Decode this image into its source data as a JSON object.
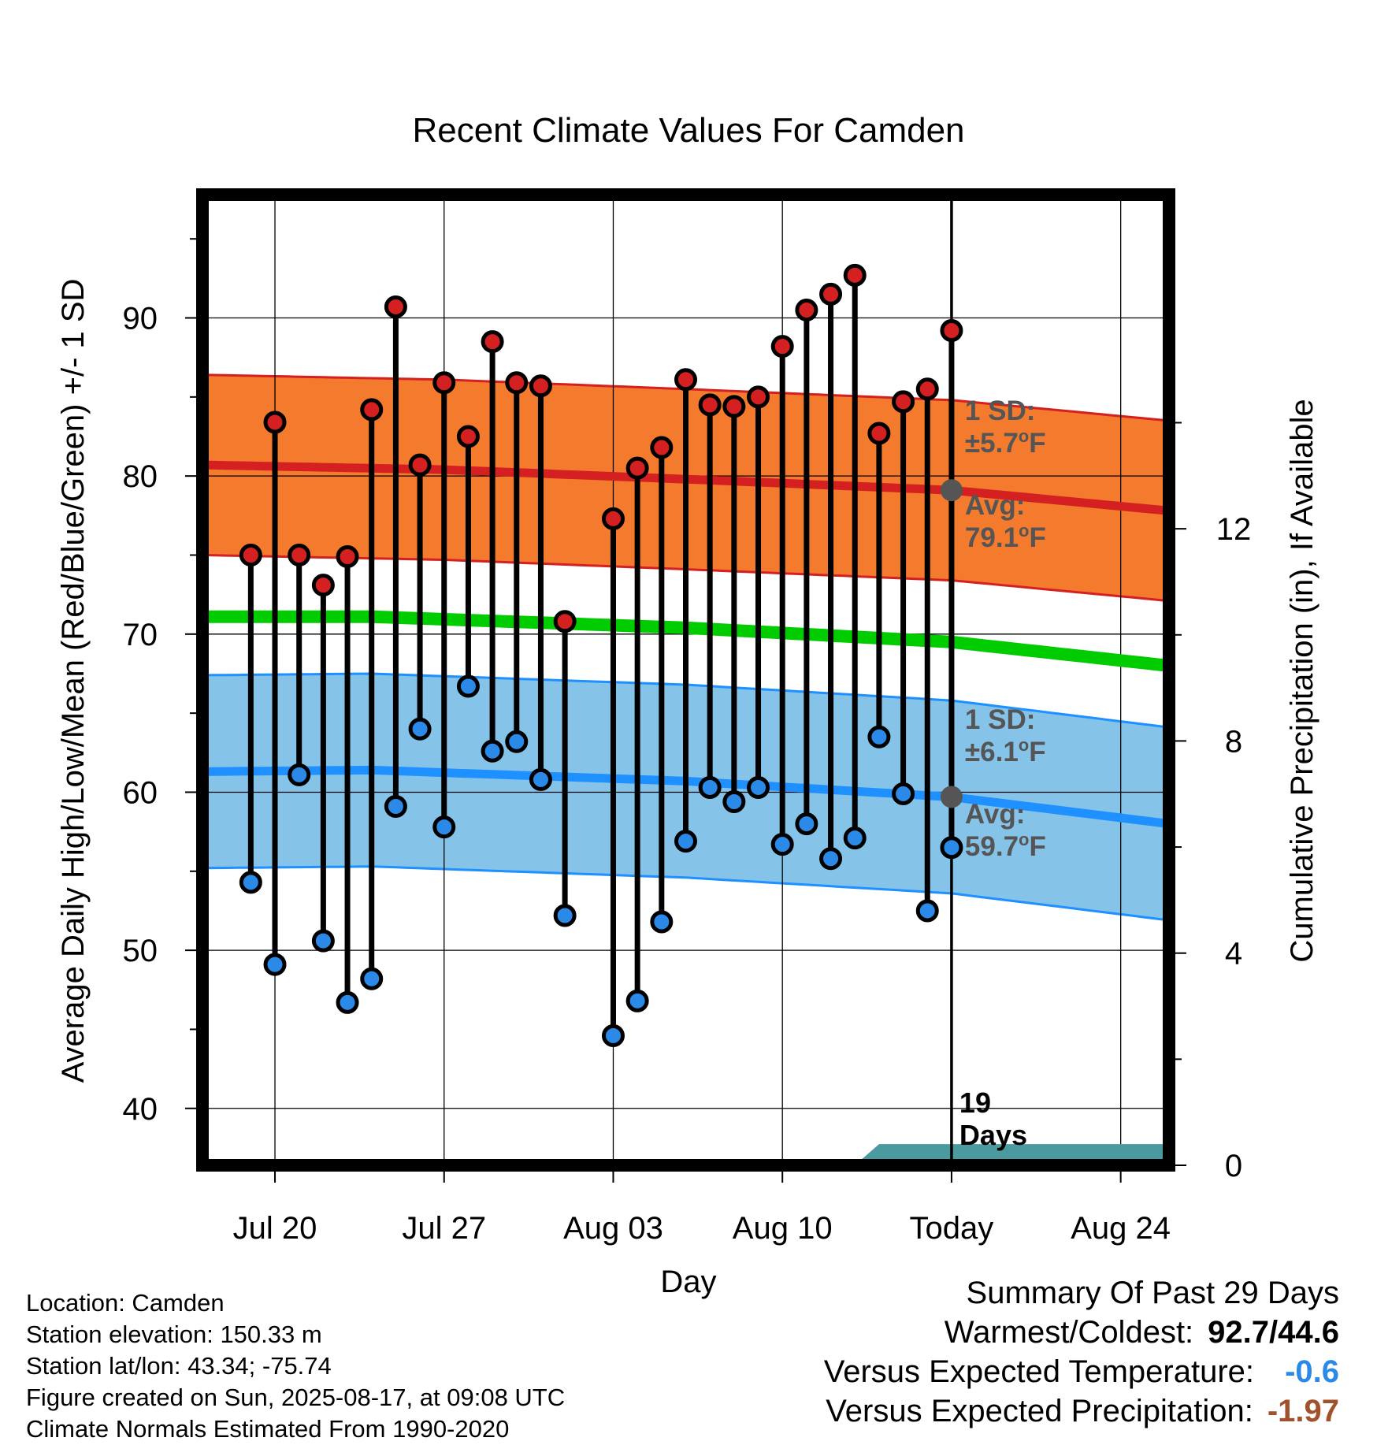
{
  "chart_data": {
    "type": "line",
    "title": "Recent Climate Values For Camden",
    "xlabel": "Day",
    "ylabel": "Average Daily High/Low/Mean (Red/Blue/Green) +/- 1 SD",
    "ylabel_right": "Cumulative Precipitation (in), If Available",
    "ylim": [
      36.4,
      97.8
    ],
    "y_ticks": [
      40,
      50,
      60,
      70,
      80,
      90
    ],
    "y2lim": [
      0,
      18.3
    ],
    "y2_ticks": [
      0,
      4,
      8,
      12
    ],
    "xlim": [
      "2025-07-17",
      "2025-08-26"
    ],
    "x_tick_dates": [
      "2025-07-20",
      "2025-07-27",
      "2025-08-03",
      "2025-08-10",
      "2025-08-17",
      "2025-08-24"
    ],
    "x_tick_labels": [
      "Jul 20",
      "Jul 27",
      "Aug 03",
      "Aug 10",
      "Today",
      "Aug 24"
    ],
    "grid": true,
    "today": "2025-08-17",
    "series": [
      {
        "name": "Observed High",
        "color": "#d42020",
        "points": [
          [
            "2025-07-19",
            75.0
          ],
          [
            "2025-07-20",
            83.4
          ],
          [
            "2025-07-21",
            75.0
          ],
          [
            "2025-07-22",
            73.1
          ],
          [
            "2025-07-23",
            74.9
          ],
          [
            "2025-07-24",
            84.2
          ],
          [
            "2025-07-25",
            90.7
          ],
          [
            "2025-07-26",
            80.7
          ],
          [
            "2025-07-27",
            85.9
          ],
          [
            "2025-07-28",
            82.5
          ],
          [
            "2025-07-29",
            88.5
          ],
          [
            "2025-07-30",
            85.9
          ],
          [
            "2025-07-31",
            85.7
          ],
          [
            "2025-08-01",
            70.8
          ],
          [
            "2025-08-03",
            77.3
          ],
          [
            "2025-08-04",
            80.5
          ],
          [
            "2025-08-05",
            81.8
          ],
          [
            "2025-08-06",
            86.1
          ],
          [
            "2025-08-07",
            84.5
          ],
          [
            "2025-08-08",
            84.4
          ],
          [
            "2025-08-09",
            85.0
          ],
          [
            "2025-08-10",
            88.2
          ],
          [
            "2025-08-11",
            90.5
          ],
          [
            "2025-08-12",
            91.5
          ],
          [
            "2025-08-13",
            92.7
          ],
          [
            "2025-08-14",
            82.7
          ],
          [
            "2025-08-15",
            84.7
          ],
          [
            "2025-08-16",
            85.5
          ],
          [
            "2025-08-17",
            89.2
          ]
        ]
      },
      {
        "name": "Observed Low",
        "color": "#2b8ae8",
        "points": [
          [
            "2025-07-19",
            54.3
          ],
          [
            "2025-07-20",
            49.1
          ],
          [
            "2025-07-21",
            61.1
          ],
          [
            "2025-07-22",
            50.6
          ],
          [
            "2025-07-23",
            46.7
          ],
          [
            "2025-07-24",
            48.2
          ],
          [
            "2025-07-25",
            59.1
          ],
          [
            "2025-07-26",
            64.0
          ],
          [
            "2025-07-27",
            57.8
          ],
          [
            "2025-07-28",
            66.7
          ],
          [
            "2025-07-29",
            62.6
          ],
          [
            "2025-07-30",
            63.2
          ],
          [
            "2025-07-31",
            60.8
          ],
          [
            "2025-08-01",
            52.2
          ],
          [
            "2025-08-03",
            44.6
          ],
          [
            "2025-08-04",
            46.8
          ],
          [
            "2025-08-05",
            51.8
          ],
          [
            "2025-08-06",
            56.9
          ],
          [
            "2025-08-07",
            60.3
          ],
          [
            "2025-08-08",
            59.4
          ],
          [
            "2025-08-09",
            60.3
          ],
          [
            "2025-08-10",
            56.7
          ],
          [
            "2025-08-11",
            58.0
          ],
          [
            "2025-08-12",
            55.8
          ],
          [
            "2025-08-13",
            57.1
          ],
          [
            "2025-08-14",
            63.5
          ],
          [
            "2025-08-15",
            59.9
          ],
          [
            "2025-08-16",
            52.5
          ],
          [
            "2025-08-17",
            56.5
          ]
        ]
      },
      {
        "name": "Normal High",
        "color": "#d42020",
        "sd": 5.7,
        "points": [
          [
            "2025-07-17",
            80.7
          ],
          [
            "2025-07-27",
            80.4
          ],
          [
            "2025-08-06",
            79.8
          ],
          [
            "2025-08-17",
            79.1
          ],
          [
            "2025-08-26",
            77.8
          ]
        ]
      },
      {
        "name": "Normal Low",
        "color": "#1e90ff",
        "sd": 6.1,
        "points": [
          [
            "2025-07-17",
            61.3
          ],
          [
            "2025-07-24",
            61.4
          ],
          [
            "2025-08-06",
            60.7
          ],
          [
            "2025-08-17",
            59.7
          ],
          [
            "2025-08-26",
            58.0
          ]
        ]
      },
      {
        "name": "Normal Mean",
        "color": "#00cc00",
        "points": [
          [
            "2025-07-17",
            71.1
          ],
          [
            "2025-07-24",
            71.1
          ],
          [
            "2025-08-06",
            70.4
          ],
          [
            "2025-08-17",
            69.5
          ],
          [
            "2025-08-26",
            68.0
          ]
        ]
      },
      {
        "name": "Normal Cumulative Precipitation",
        "color": "#4a9aa0",
        "axis": "right",
        "points": [
          [
            "2025-08-13",
            0.0
          ],
          [
            "2025-08-14",
            0.4
          ],
          [
            "2025-08-26",
            0.4
          ]
        ]
      }
    ],
    "annotations": {
      "high_sd_label": "1 SD:",
      "high_sd_value": "±5.7",
      "high_avg_label": "Avg:",
      "high_avg_value": "79.1",
      "low_sd_label": "1 SD:",
      "low_sd_value": "±6.1",
      "low_avg_label": "Avg:",
      "low_avg_value": "59.7",
      "degree_unit_letter": "F",
      "days_count": "19",
      "days_word": "Days"
    }
  },
  "footer": {
    "location": "Location: Camden",
    "elevation": "Station elevation: 150.33 m",
    "latlon": "Station lat/lon: 43.34; -75.74",
    "created": "Figure created on Sun, 2025-08-17, at 09:08 UTC",
    "normals": "Climate Normals Estimated From 1990-2020"
  },
  "summary": {
    "title": "Summary Of Past 29 Days",
    "warmest_coldest_label": "Warmest/Coldest:",
    "warmest_coldest_value": "92.7/44.6",
    "temp_label": "Versus Expected Temperature:",
    "temp_value": "-0.6",
    "temp_color": "#2b8ae8",
    "precip_label": "Versus Expected Precipitation:",
    "precip_value": "-1.97",
    "precip_color": "#a0522d"
  }
}
